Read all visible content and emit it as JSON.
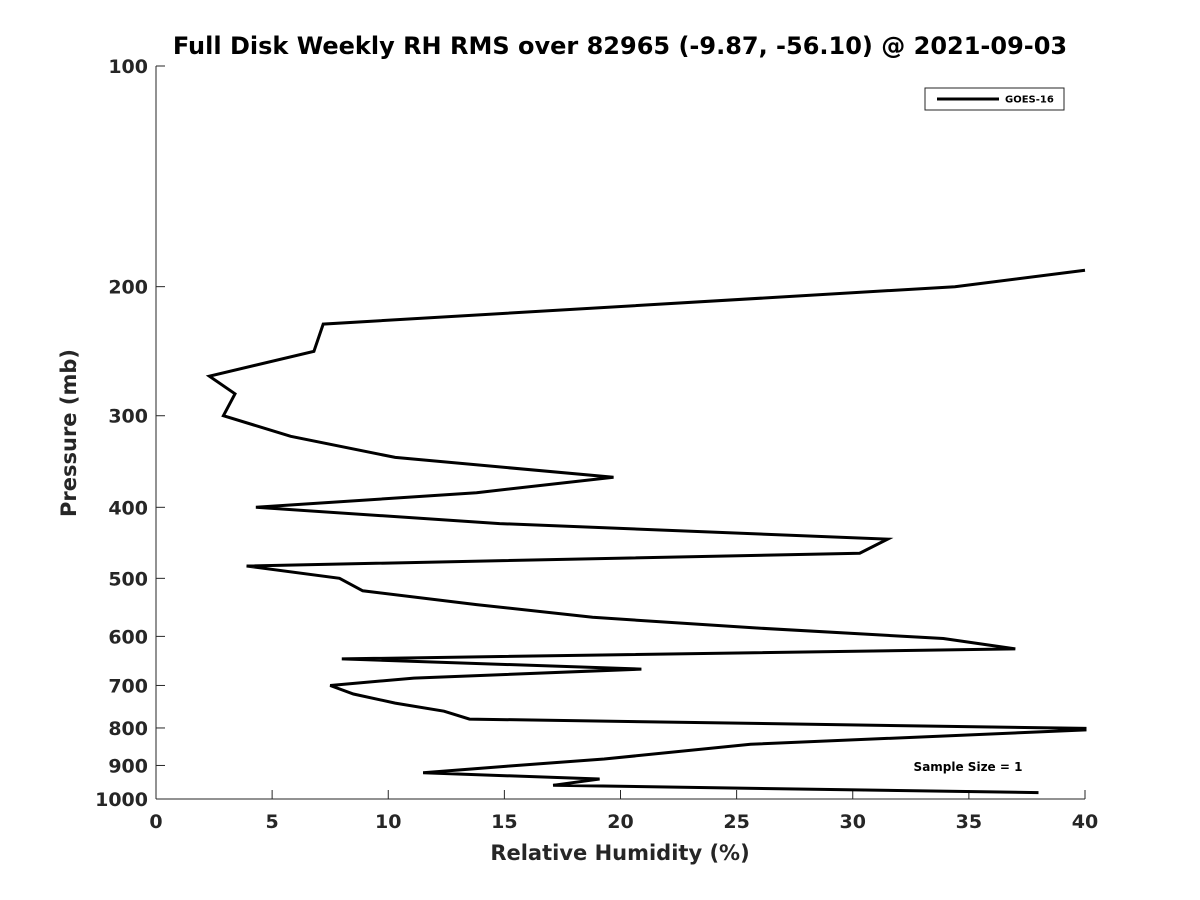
{
  "chart_data": {
    "type": "line",
    "title": "Full Disk Weekly RH RMS over 82965 (-9.87, -56.10) @ 2021-09-03",
    "xlabel": "Relative Humidity (%)",
    "ylabel": "Pressure (mb)",
    "xlim": [
      0,
      40
    ],
    "ylim": [
      100,
      1000
    ],
    "y_scale": "log",
    "y_reversed": true,
    "xticks": [
      0,
      5,
      10,
      15,
      20,
      25,
      30,
      35,
      40
    ],
    "yticks": [
      100,
      200,
      300,
      400,
      500,
      600,
      700,
      800,
      900,
      1000
    ],
    "grid": false,
    "legend_position": "top-right",
    "annotation": "Sample Size = 1",
    "series": [
      {
        "name": "GOES-16",
        "color": "#000000",
        "points": [
          [
            40.0,
            190
          ],
          [
            34.4,
            200
          ],
          [
            7.2,
            225
          ],
          [
            6.8,
            245
          ],
          [
            2.3,
            265
          ],
          [
            3.4,
            280
          ],
          [
            2.9,
            300
          ],
          [
            5.8,
            320
          ],
          [
            10.3,
            342
          ],
          [
            19.7,
            364
          ],
          [
            13.8,
            382
          ],
          [
            4.3,
            400
          ],
          [
            14.8,
            421
          ],
          [
            31.5,
            442
          ],
          [
            30.3,
            462
          ],
          [
            3.9,
            481
          ],
          [
            7.9,
            500
          ],
          [
            8.9,
            520
          ],
          [
            13.8,
            543
          ],
          [
            18.8,
            565
          ],
          [
            25.7,
            584
          ],
          [
            33.9,
            604
          ],
          [
            37.0,
            624
          ],
          [
            8.0,
            644
          ],
          [
            20.9,
            665
          ],
          [
            11.1,
            684
          ],
          [
            7.5,
            700
          ],
          [
            8.5,
            719
          ],
          [
            10.3,
            740
          ],
          [
            12.4,
            759
          ],
          [
            13.5,
            778
          ],
          [
            40.0,
            801
          ],
          [
            40.0,
            805
          ],
          [
            25.6,
            842
          ],
          [
            19.3,
            882
          ],
          [
            15.1,
            902
          ],
          [
            11.5,
            921
          ],
          [
            19.1,
            939
          ],
          [
            17.1,
            958
          ],
          [
            38.0,
            980
          ]
        ]
      }
    ]
  }
}
